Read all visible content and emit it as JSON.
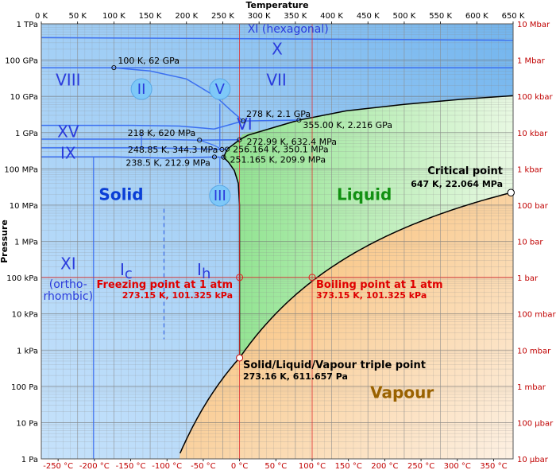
{
  "chart_data": {
    "type": "area",
    "title": "",
    "xlabel": "Temperature",
    "ylabel": "Pressure",
    "xlim_K": [
      0,
      650
    ],
    "ylim_Pa_log10": [
      0,
      12
    ],
    "y_scale": "log",
    "grid": true,
    "top_ticks": [
      "0 K",
      "50 K",
      "100 K",
      "150 K",
      "200 K",
      "250 K",
      "300 K",
      "350 K",
      "400 K",
      "450 K",
      "500 K",
      "550 K",
      "600 K",
      "650 K"
    ],
    "bottom_ticks": [
      "-250 °C",
      "-200 °C",
      "-150 °C",
      "-100 °C",
      "-50 °C",
      "0 °C",
      "50 °C",
      "100 °C",
      "150 °C",
      "200 °C",
      "250 °C",
      "300 °C",
      "350 °C"
    ],
    "left_ticks": [
      "1 TPa",
      "100 GPa",
      "10 GPa",
      "1 GPa",
      "100 MPa",
      "10 MPa",
      "1 MPa",
      "100 kPa",
      "10 kPa",
      "1 kPa",
      "100 Pa",
      "10 Pa",
      "1 Pa"
    ],
    "right_ticks": [
      "10 Mbar",
      "1 Mbar",
      "100 kbar",
      "10 kbar",
      "1 kbar",
      "100 bar",
      "10 bar",
      "1 bar",
      "100 mbar",
      "10 mbar",
      "1 mbar",
      "100 µbar",
      "10 µbar"
    ],
    "phases": [
      {
        "label": "Solid",
        "color": "#0a3fd6",
        "T": 110,
        "logP": 7.26,
        "size": 20,
        "weight": "bold"
      },
      {
        "label": "Liquid",
        "color": "#119011",
        "T": 445,
        "logP": 7.26,
        "size": 20,
        "weight": "bold"
      },
      {
        "label": "Vapour",
        "color": "#9a6200",
        "T": 497,
        "logP": 1.8,
        "size": 20,
        "weight": "bold"
      },
      {
        "label": "XI (hexagonal)",
        "color": "#2a3bdc",
        "T": 340,
        "logP": 11.85,
        "size": 14,
        "weight": "normal"
      },
      {
        "label": "X",
        "color": "#2a3bdc",
        "T": 325,
        "logP": 11.28,
        "size": 20,
        "weight": "normal"
      },
      {
        "label": "VIII",
        "color": "#2a3bdc",
        "T": 37,
        "logP": 10.42,
        "size": 20,
        "weight": "normal"
      },
      {
        "label": "VII",
        "color": "#2a3bdc",
        "T": 324,
        "logP": 10.42,
        "size": 20,
        "weight": "normal"
      },
      {
        "label": "VI",
        "color": "#2a3bdc",
        "T": 280,
        "logP": 9.2,
        "size": 20,
        "weight": "normal"
      },
      {
        "label": "XV",
        "color": "#2a3bdc",
        "T": 37,
        "logP": 9.0,
        "size": 20,
        "weight": "normal"
      },
      {
        "label": "IX",
        "color": "#2a3bdc",
        "T": 37,
        "logP": 8.4,
        "size": 20,
        "weight": "normal"
      },
      {
        "label": "XI",
        "color": "#2a3bdc",
        "T": 37,
        "logP": 5.35,
        "size": 20,
        "weight": "normal"
      },
      {
        "label": "(ortho-",
        "color": "#2a3bdc",
        "T": 37,
        "logP": 4.8,
        "size": 14,
        "weight": "normal"
      },
      {
        "label": "rhombic)",
        "color": "#2a3bdc",
        "T": 37,
        "logP": 4.48,
        "size": 14,
        "weight": "normal"
      }
    ],
    "circled_phases": [
      {
        "label": "II",
        "T": 138,
        "logP": 10.2
      },
      {
        "label": "V",
        "T": 246,
        "logP": 10.2
      },
      {
        "label": "III",
        "T": 246,
        "logP": 7.26
      }
    ],
    "sub_phases": [
      {
        "label": "I",
        "sub": "c",
        "T": 117,
        "logP": 5.2
      },
      {
        "label": "I",
        "sub": "h",
        "T": 224,
        "logP": 5.2
      }
    ],
    "points": [
      {
        "label": "100 K, 62 GPa",
        "T": 100,
        "P": 62000000000.0,
        "lx": 5,
        "ly": -5
      },
      {
        "label": "278 K, 2.1 GPa",
        "T": 278,
        "P": 2100000000.0,
        "lx": 4,
        "ly": -5
      },
      {
        "label": "355.00 K, 2.216 GPa",
        "T": 355,
        "P": 2216000000.0,
        "lx": 5,
        "ly": 10
      },
      {
        "label": "218 K, 620 MPa",
        "T": 218,
        "P": 620000000.0,
        "lx": -5,
        "ly": -5
      },
      {
        "label": "272.99 K, 632.4 MPa",
        "T": 272.99,
        "P": 632400000.0,
        "lx": 9,
        "ly": 6
      },
      {
        "label": "248.85 K, 344.3 MPa",
        "T": 248.85,
        "P": 344300000.0,
        "lx": -5,
        "ly": 4
      },
      {
        "label": "256.164 K, 350.1 MPa",
        "T": 256.164,
        "P": 350100000.0,
        "lx": 7,
        "ly": 4
      },
      {
        "label": "238.5 K, 212.9 MPa",
        "T": 238.5,
        "P": 212900000.0,
        "lx": -5,
        "ly": 11
      },
      {
        "label": "251.165 K, 209.9 MPa",
        "T": 251.165,
        "P": 209900000.0,
        "lx": 8,
        "ly": 7
      }
    ],
    "critical_point": {
      "name": "Critical point",
      "value": "647 K, 22.064 MPa",
      "T": 647,
      "P": 22064000.0
    },
    "triple_point": {
      "name": "Solid/Liquid/Vapour triple point",
      "value": "273.16 K, 611.657 Pa",
      "T": 273.16,
      "P": 611.657
    },
    "freezing_point": {
      "name": "Freezing point at 1 atm",
      "value": "273.15 K, 101.325 kPa",
      "T": 273.15,
      "P": 101325
    },
    "boiling_point": {
      "name": "Boiling point at 1 atm",
      "value": "373.15 K, 101.325 kPa",
      "T": 373.15,
      "P": 101325
    }
  }
}
